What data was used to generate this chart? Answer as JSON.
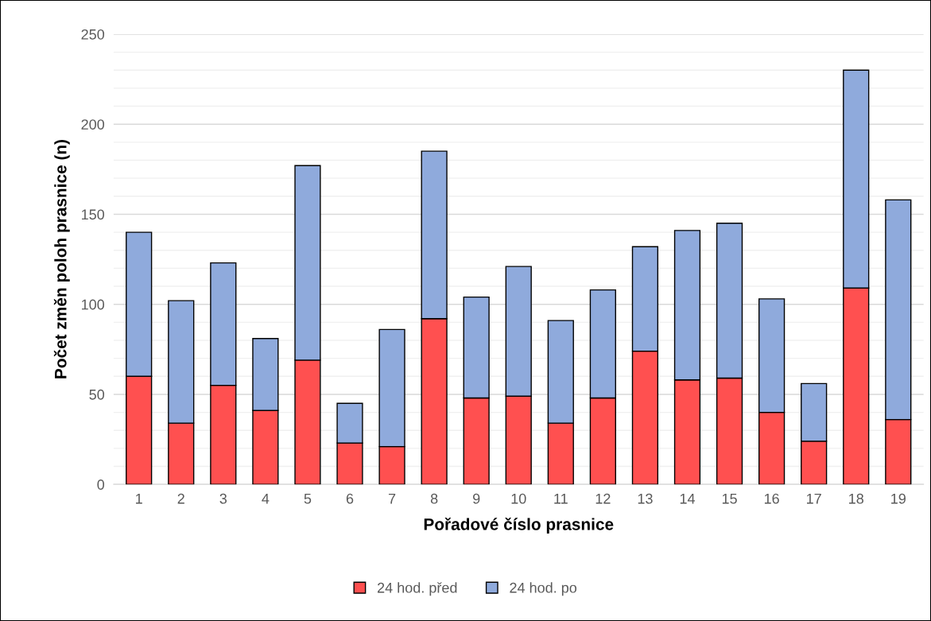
{
  "chart_data": {
    "type": "bar",
    "stacked": true,
    "xlabel": "Pořadové číslo prasnice",
    "ylabel": "Počet změn poloh prasnice (n)",
    "categories": [
      "1",
      "2",
      "3",
      "4",
      "5",
      "6",
      "7",
      "8",
      "9",
      "10",
      "11",
      "12",
      "13",
      "14",
      "15",
      "16",
      "17",
      "18",
      "19"
    ],
    "series": [
      {
        "name": "24 hod. před",
        "color": "#ff5050",
        "values": [
          60,
          34,
          55,
          41,
          69,
          23,
          21,
          92,
          48,
          49,
          34,
          48,
          74,
          58,
          59,
          40,
          24,
          109,
          36
        ]
      },
      {
        "name": "24 hod. po",
        "color": "#8faadc",
        "values": [
          80,
          68,
          68,
          40,
          108,
          22,
          65,
          93,
          56,
          72,
          57,
          60,
          58,
          83,
          86,
          63,
          32,
          121,
          122
        ]
      }
    ],
    "ylim": [
      0,
      250
    ],
    "yticks": [
      0,
      {
        "value": 10,
        "label": null
      },
      {
        "value": 20,
        "label": null
      },
      {
        "value": 30,
        "label": null
      },
      {
        "value": 40,
        "label": null
      },
      50,
      {
        "value": 60,
        "label": null
      },
      {
        "value": 70,
        "label": null
      },
      {
        "value": 80,
        "label": null
      },
      {
        "value": 90,
        "label": null
      },
      100,
      {
        "value": 110,
        "label": null
      },
      {
        "value": 120,
        "label": null
      },
      {
        "value": 130,
        "label": null
      },
      {
        "value": 140,
        "label": null
      },
      150,
      {
        "value": 160,
        "label": null
      },
      {
        "value": 170,
        "label": null
      },
      {
        "value": 180,
        "label": null
      },
      {
        "value": 190,
        "label": null
      },
      200,
      {
        "value": 210,
        "label": null
      },
      {
        "value": 220,
        "label": null
      },
      {
        "value": 230,
        "label": null
      },
      {
        "value": 240,
        "label": null
      },
      250
    ],
    "grid": "y",
    "legend": "bottom"
  }
}
